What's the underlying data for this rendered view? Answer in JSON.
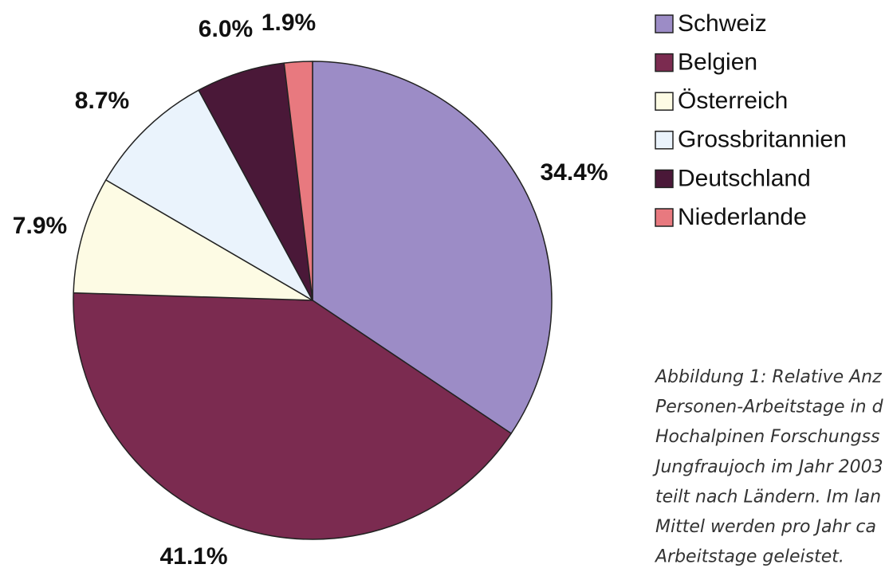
{
  "chart_data": {
    "type": "pie",
    "categories": [
      "Schweiz",
      "Belgien",
      "Österreich",
      "Grossbritannien",
      "Deutschland",
      "Niederlande"
    ],
    "values": [
      34.4,
      41.1,
      7.9,
      8.7,
      6.0,
      1.9
    ],
    "value_labels": [
      "34.4%",
      "41.1%",
      "7.9%",
      "8.7%",
      "6.0%",
      "1.9%"
    ],
    "colors": [
      "#9c8cc6",
      "#7b2b50",
      "#fdfbe4",
      "#eaf3fc",
      "#4a1838",
      "#e8797f"
    ],
    "legend": "right",
    "caption": [
      "Abbildung 1: Relative Anz",
      "Personen-Arbeitstage in d",
      "Hochalpinen Forschungss",
      "Jungfraujoch im Jahr 2003",
      "teilt nach Ländern. Im lan",
      "Mittel werden pro Jahr ca",
      "Arbeitstage geleistet."
    ]
  }
}
